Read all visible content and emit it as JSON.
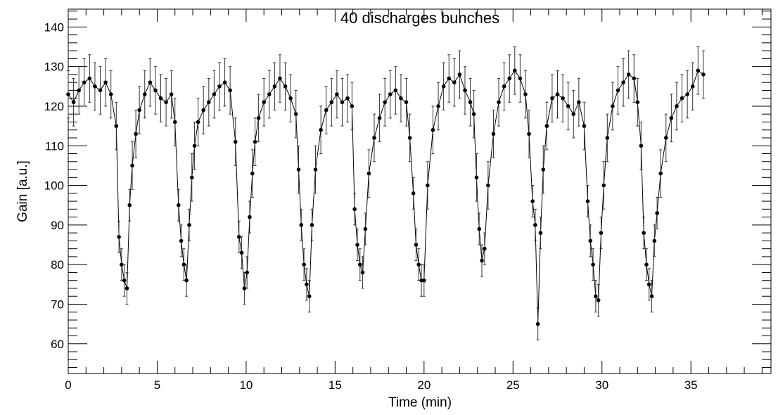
{
  "chart_data": {
    "type": "scatter",
    "title": "40 discharges bunches",
    "xlabel": "Time (min)",
    "ylabel": "Gain [a.u.]",
    "xlim": [
      0,
      39.5
    ],
    "ylim": [
      52.5,
      144.5
    ],
    "x_ticks": [
      "0",
      "5",
      "10",
      "15",
      "20",
      "25",
      "30",
      "35"
    ],
    "y_ticks": [
      "60",
      "70",
      "80",
      "90",
      "100",
      "110",
      "120",
      "130",
      "140"
    ],
    "x_tick_values": [
      0,
      5,
      10,
      15,
      20,
      25,
      30,
      35
    ],
    "y_tick_values": [
      60,
      70,
      80,
      90,
      100,
      110,
      120,
      130,
      140
    ],
    "grid": false,
    "error_bars": true,
    "marker_color": "#000000",
    "series": [
      {
        "x": [
          0.0,
          0.3,
          0.6,
          0.9,
          1.2,
          1.5,
          1.8,
          2.1,
          2.4,
          2.7,
          2.85,
          3.0,
          3.15,
          3.3,
          3.45,
          3.6,
          3.8,
          4.0,
          4.3,
          4.6,
          4.9,
          5.2,
          5.5,
          5.8,
          6.0,
          6.2,
          6.35,
          6.5,
          6.65,
          6.8,
          6.95,
          7.1,
          7.3,
          7.6,
          7.9,
          8.2,
          8.5,
          8.8,
          9.1,
          9.4,
          9.6,
          9.75,
          9.9,
          10.05,
          10.2,
          10.35,
          10.5,
          10.7,
          11.0,
          11.3,
          11.6,
          11.9,
          12.2,
          12.5,
          12.8,
          12.95,
          13.1,
          13.25,
          13.4,
          13.55,
          13.7,
          13.9,
          14.2,
          14.5,
          14.8,
          15.1,
          15.4,
          15.7,
          15.95,
          16.1,
          16.25,
          16.4,
          16.55,
          16.7,
          16.9,
          17.2,
          17.5,
          17.8,
          18.1,
          18.4,
          18.7,
          19.0,
          19.2,
          19.4,
          19.55,
          19.7,
          19.85,
          20.0,
          20.2,
          20.5,
          20.8,
          21.1,
          21.4,
          21.7,
          22.0,
          22.3,
          22.6,
          22.8,
          22.95,
          23.1,
          23.25,
          23.4,
          23.6,
          23.9,
          24.2,
          24.5,
          24.8,
          25.1,
          25.4,
          25.7,
          25.9,
          26.1,
          26.25,
          26.4,
          26.55,
          26.7,
          26.9,
          27.2,
          27.5,
          27.8,
          28.1,
          28.4,
          28.7,
          29.0,
          29.2,
          29.35,
          29.5,
          29.65,
          29.8,
          29.95,
          30.1,
          30.3,
          30.6,
          30.9,
          31.2,
          31.5,
          31.8,
          32.0,
          32.2,
          32.35,
          32.5,
          32.65,
          32.8,
          32.95,
          33.1,
          33.3,
          33.6,
          33.9,
          34.2,
          34.5,
          34.8,
          35.1,
          35.4,
          35.7
        ],
        "y": [
          123,
          121,
          124,
          126,
          127,
          125,
          124,
          126,
          123,
          115,
          87,
          80,
          76,
          74,
          95,
          105,
          113,
          119,
          123,
          126,
          124,
          122,
          121,
          123,
          116,
          95,
          86,
          80,
          76,
          90,
          102,
          110,
          116,
          119,
          121,
          123,
          125,
          126,
          124,
          111,
          87,
          83,
          74,
          78,
          92,
          103,
          111,
          117,
          121,
          123,
          125,
          127,
          125,
          122,
          118,
          104,
          90,
          80,
          75,
          72,
          90,
          104,
          114,
          119,
          121,
          123,
          121,
          122,
          120,
          94,
          85,
          80,
          78,
          89,
          103,
          112,
          117,
          121,
          123,
          124,
          122,
          121,
          112,
          98,
          85,
          80,
          76,
          76,
          100,
          114,
          120,
          125,
          127,
          126,
          128,
          124,
          121,
          118,
          102,
          89,
          81,
          84,
          100,
          113,
          121,
          125,
          127,
          129,
          127,
          123,
          113,
          96,
          90,
          65,
          88,
          104,
          115,
          122,
          123,
          122,
          120,
          118,
          121,
          115,
          96,
          86,
          80,
          72,
          71,
          88,
          100,
          112,
          120,
          124,
          126,
          128,
          127,
          121,
          110,
          88,
          80,
          75,
          72,
          86,
          93,
          103,
          112,
          117,
          120,
          122,
          123,
          125,
          129,
          128
        ]
      }
    ]
  }
}
